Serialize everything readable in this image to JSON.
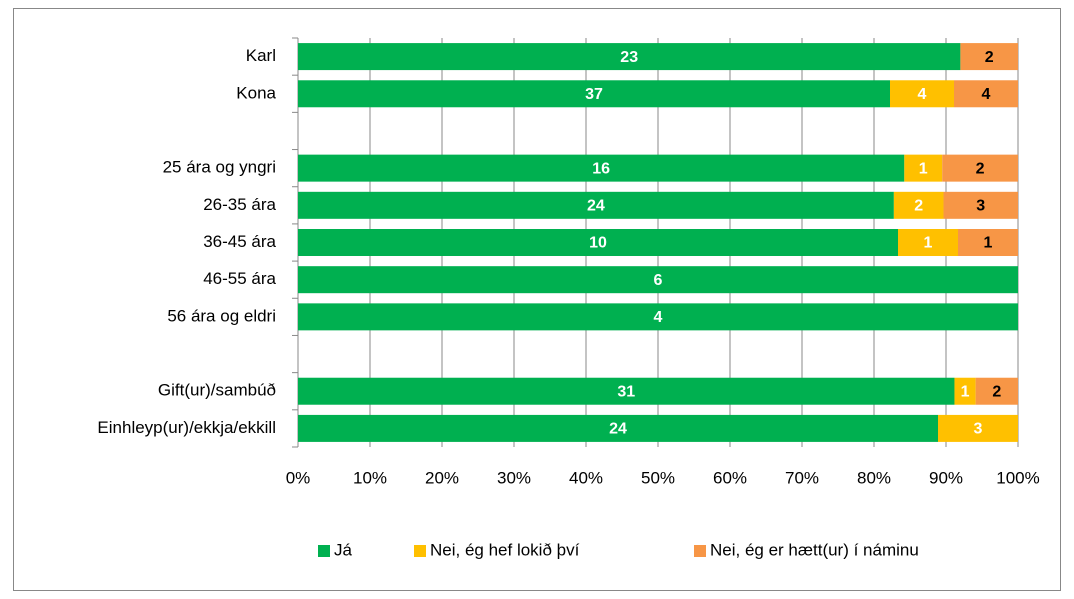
{
  "chart_data": {
    "type": "bar",
    "orientation": "horizontal",
    "stacked": "percent",
    "categories": [
      "Karl",
      "Kona",
      null,
      "25 ára og yngri",
      "26-35 ára",
      "36-45 ára",
      "46-55 ára",
      "56 ára og eldri",
      null,
      "Gift(ur)/sambúð",
      "Einhleyp(ur)/ekkja/ekkill"
    ],
    "series": [
      {
        "name": "Já",
        "color": "#00b050",
        "label_color": "#ffffff",
        "values": [
          23,
          37,
          null,
          16,
          24,
          10,
          6,
          4,
          null,
          31,
          24
        ]
      },
      {
        "name": "Nei, ég hef lokið því",
        "color": "#ffc000",
        "label_color": "#ffffff",
        "values": [
          null,
          4,
          null,
          1,
          2,
          1,
          null,
          null,
          null,
          1,
          3
        ]
      },
      {
        "name": "Nei, ég er hætt(ur) í náminu",
        "color": "#f79646",
        "label_color": "#000000",
        "values": [
          2,
          4,
          null,
          2,
          3,
          1,
          null,
          null,
          null,
          2,
          null
        ]
      }
    ],
    "xlim": [
      0,
      100
    ],
    "xticks": [
      {
        "value": 0,
        "label": "0%"
      },
      {
        "value": 10,
        "label": "10%"
      },
      {
        "value": 20,
        "label": "20%"
      },
      {
        "value": 30,
        "label": "30%"
      },
      {
        "value": 40,
        "label": "40%"
      },
      {
        "value": 50,
        "label": "50%"
      },
      {
        "value": 60,
        "label": "60%"
      },
      {
        "value": 70,
        "label": "70%"
      },
      {
        "value": 80,
        "label": "80%"
      },
      {
        "value": 90,
        "label": "90%"
      },
      {
        "value": 100,
        "label": "100%"
      }
    ],
    "grid": true,
    "legend": "bottom"
  }
}
